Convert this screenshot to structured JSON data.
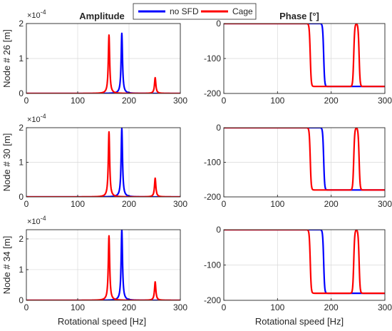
{
  "legend": {
    "entries": [
      {
        "label": "no SFD",
        "color": "#0000ff"
      },
      {
        "label": "Cage",
        "color": "#ff0000"
      }
    ],
    "placement": "top-center"
  },
  "titles": {
    "amplitude": "Amplitude",
    "phase": "Phase [°]"
  },
  "xlabel": "Rotational speed [Hz]",
  "exponent_label": "×10",
  "exponent_power": "-4",
  "colors": {
    "no_sfd": "#0000ff",
    "cage": "#ff0000",
    "axis": "#262626",
    "grid": "#d9d9d9"
  },
  "chart_data": [
    {
      "type": "line",
      "title": "Amplitude",
      "ylabel": "Node # 26 [m]",
      "xlim": [
        0,
        300
      ],
      "ylim": [
        0,
        2
      ],
      "y_scale_exponent": -4,
      "xticks": [
        "0",
        "100",
        "200",
        "300"
      ],
      "yticks": [
        "0",
        "1",
        "2"
      ],
      "series": [
        {
          "name": "no SFD",
          "peaks": [
            {
              "x": 186,
              "y": 1.72
            }
          ]
        },
        {
          "name": "Cage",
          "peaks": [
            {
              "x": 161,
              "y": 1.67
            },
            {
              "x": 251,
              "y": 0.45
            }
          ]
        }
      ]
    },
    {
      "type": "line",
      "title": "Phase [°]",
      "ylabel": "",
      "xlim": [
        0,
        300
      ],
      "ylim": [
        -200,
        0
      ],
      "xticks": [
        "0",
        "100",
        "200",
        "300"
      ],
      "yticks": [
        "0",
        "-100",
        "-200"
      ],
      "series": [
        {
          "name": "no SFD",
          "transitions": [
            {
              "x": 186,
              "from": 0,
              "to": -180
            }
          ]
        },
        {
          "name": "Cage",
          "transitions": [
            {
              "x": 161,
              "from": 0,
              "to": -180
            },
            {
              "x": 242,
              "from": -180,
              "to": 0
            },
            {
              "x": 252,
              "from": 0,
              "to": -180
            }
          ]
        }
      ]
    },
    {
      "type": "line",
      "title": "",
      "ylabel": "Node # 30 [m]",
      "xlim": [
        0,
        300
      ],
      "ylim": [
        0,
        2
      ],
      "y_scale_exponent": -4,
      "xticks": [
        "0",
        "100",
        "200",
        "300"
      ],
      "yticks": [
        "0",
        "1",
        "2"
      ],
      "series": [
        {
          "name": "no SFD",
          "peaks": [
            {
              "x": 186,
              "y": 1.98
            }
          ]
        },
        {
          "name": "Cage",
          "peaks": [
            {
              "x": 161,
              "y": 1.88
            },
            {
              "x": 251,
              "y": 0.54
            }
          ]
        }
      ]
    },
    {
      "type": "line",
      "title": "",
      "ylabel": "",
      "xlim": [
        0,
        300
      ],
      "ylim": [
        -200,
        0
      ],
      "xticks": [
        "0",
        "100",
        "200",
        "300"
      ],
      "yticks": [
        "0",
        "-100",
        "-200"
      ],
      "series": [
        {
          "name": "no SFD",
          "transitions": [
            {
              "x": 186,
              "from": 0,
              "to": -180
            }
          ]
        },
        {
          "name": "Cage",
          "transitions": [
            {
              "x": 161,
              "from": 0,
              "to": -180
            },
            {
              "x": 242,
              "from": -180,
              "to": 0
            },
            {
              "x": 252,
              "from": 0,
              "to": -180
            }
          ]
        }
      ]
    },
    {
      "type": "line",
      "title": "",
      "ylabel": "Node # 34 [m]",
      "xlim": [
        0,
        300
      ],
      "ylim": [
        0,
        2.3
      ],
      "y_scale_exponent": -4,
      "xticks": [
        "0",
        "100",
        "200",
        "300"
      ],
      "yticks": [
        "0",
        "1",
        "2"
      ],
      "series": [
        {
          "name": "no SFD",
          "peaks": [
            {
              "x": 186,
              "y": 2.3
            }
          ]
        },
        {
          "name": "Cage",
          "peaks": [
            {
              "x": 161,
              "y": 2.1
            },
            {
              "x": 251,
              "y": 0.6
            }
          ]
        }
      ]
    },
    {
      "type": "line",
      "title": "",
      "ylabel": "",
      "xlim": [
        0,
        300
      ],
      "ylim": [
        -200,
        0
      ],
      "xticks": [
        "0",
        "100",
        "200",
        "300"
      ],
      "yticks": [
        "0",
        "-100",
        "-200"
      ],
      "series": [
        {
          "name": "no SFD",
          "transitions": [
            {
              "x": 186,
              "from": 0,
              "to": -180
            }
          ]
        },
        {
          "name": "Cage",
          "transitions": [
            {
              "x": 161,
              "from": 0,
              "to": -180
            },
            {
              "x": 242,
              "from": -180,
              "to": 0
            },
            {
              "x": 252,
              "from": 0,
              "to": -180
            }
          ]
        }
      ]
    }
  ]
}
